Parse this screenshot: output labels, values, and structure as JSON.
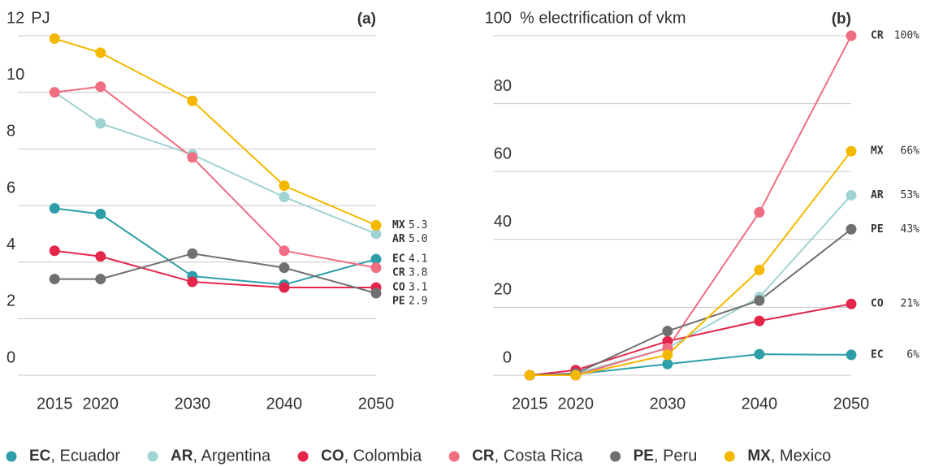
{
  "chart_data": [
    {
      "type": "line",
      "panel_label": "(a)",
      "y_label": "PJ",
      "x": [
        2015,
        2020,
        2030,
        2040,
        2050
      ],
      "xlim": [
        2011,
        2050
      ],
      "xticks": [
        2015,
        2020,
        2030,
        2040,
        2050
      ],
      "ylim": [
        0,
        12
      ],
      "yticks": [
        0,
        2,
        4,
        6,
        8,
        10,
        12
      ],
      "grid": true,
      "series": [
        {
          "name": "EC",
          "color": "#2e9ea8",
          "values": [
            5.9,
            5.7,
            3.5,
            3.2,
            4.1
          ],
          "value_labels": [
            null,
            null,
            null,
            null,
            "4.1"
          ]
        },
        {
          "name": "AR",
          "color": "#9fd4d2",
          "values": [
            10.0,
            8.9,
            7.8,
            6.3,
            5.0
          ],
          "value_labels": [
            null,
            null,
            null,
            null,
            "5.0"
          ]
        },
        {
          "name": "CO",
          "color": "#e3264a",
          "values": [
            4.4,
            4.2,
            3.3,
            3.1,
            3.1
          ],
          "value_labels": [
            null,
            null,
            null,
            null,
            "3.1"
          ]
        },
        {
          "name": "CR",
          "color": "#f06e82",
          "values": [
            10.0,
            10.2,
            7.7,
            4.4,
            3.8
          ],
          "value_labels": [
            null,
            null,
            null,
            null,
            "3.8"
          ]
        },
        {
          "name": "PE",
          "color": "#707070",
          "values": [
            3.4,
            3.4,
            4.3,
            3.8,
            2.9
          ],
          "value_labels": [
            null,
            null,
            null,
            null,
            "2.9"
          ]
        },
        {
          "name": "MX",
          "color": "#f5b800",
          "values": [
            11.9,
            11.4,
            9.7,
            6.7,
            5.3
          ],
          "value_labels": [
            null,
            null,
            null,
            null,
            "5.3"
          ]
        }
      ]
    },
    {
      "type": "line",
      "panel_label": "(b)",
      "y_label": "% electrification of vkm",
      "x": [
        2015,
        2020,
        2030,
        2040,
        2050
      ],
      "xlim": [
        2011,
        2050
      ],
      "xticks": [
        2015,
        2020,
        2030,
        2040,
        2050
      ],
      "ylim": [
        0,
        100
      ],
      "yticks": [
        0,
        20,
        40,
        60,
        80,
        100
      ],
      "grid": true,
      "series": [
        {
          "name": "EC",
          "color": "#2e9ea8",
          "values": [
            0,
            0.3,
            3.3,
            6.2,
            6
          ],
          "value_labels": [
            null,
            null,
            null,
            null,
            "6%"
          ]
        },
        {
          "name": "AR",
          "color": "#9fd4d2",
          "values": [
            0,
            0.5,
            8,
            23,
            53
          ],
          "value_labels": [
            null,
            null,
            null,
            null,
            "53%"
          ]
        },
        {
          "name": "CO",
          "color": "#e3264a",
          "values": [
            0,
            1.5,
            10,
            16,
            21
          ],
          "value_labels": [
            null,
            null,
            null,
            null,
            "21%"
          ]
        },
        {
          "name": "CR",
          "color": "#f06e82",
          "values": [
            0,
            0,
            8,
            48,
            100
          ],
          "value_labels": [
            null,
            null,
            null,
            null,
            "100%"
          ]
        },
        {
          "name": "PE",
          "color": "#707070",
          "values": [
            0,
            0.5,
            13,
            22,
            43
          ],
          "value_labels": [
            null,
            null,
            null,
            null,
            "43%"
          ]
        },
        {
          "name": "MX",
          "color": "#f5b800",
          "values": [
            0,
            0,
            6,
            31,
            66
          ],
          "value_labels": [
            null,
            null,
            null,
            null,
            "66%"
          ]
        }
      ]
    }
  ],
  "legend": [
    ", Ecuador",
    ", Argentina",
    ", Colombia",
    ", Costa Rica",
    ", Peru",
    ", Mexico"
  ]
}
